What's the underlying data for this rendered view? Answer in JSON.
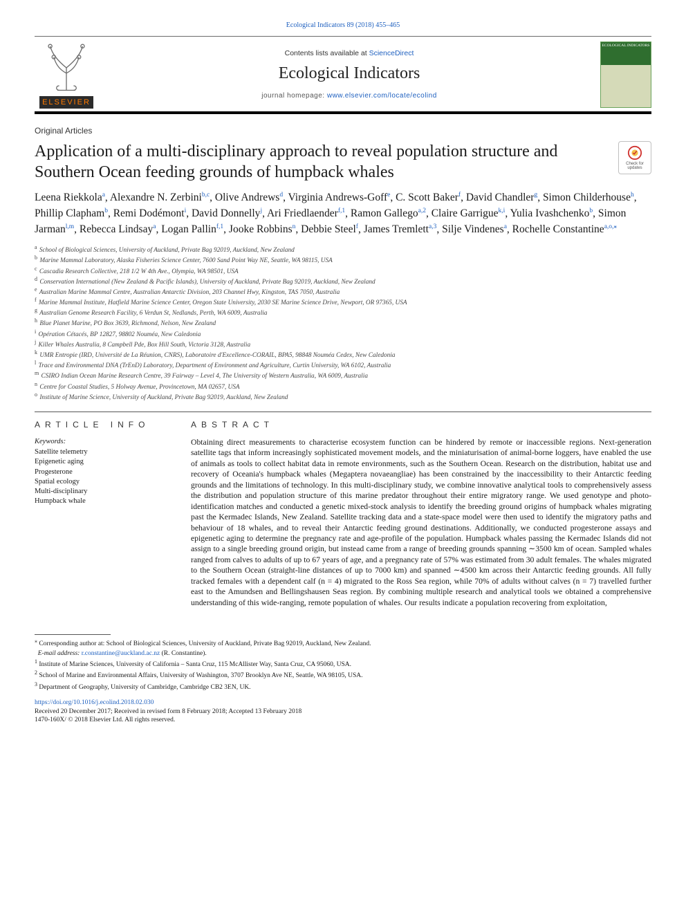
{
  "top": {
    "citation": "Ecological Indicators 89 (2018) 455–465",
    "contents_line_pre": "Contents lists available at ",
    "contents_link": "ScienceDirect",
    "journal": "Ecological Indicators",
    "homepage_pre": "journal homepage: ",
    "homepage_url": "www.elsevier.com/locate/ecolind",
    "elsevier_label": "ELSEVIER",
    "cover_label": "ECOLOGICAL INDICATORS"
  },
  "section_label": "Original Articles",
  "title": "Application of a multi-disciplinary approach to reveal population structure and Southern Ocean feeding grounds of humpback whales",
  "crossmark_text": "Check for updates",
  "authors_html": "Leena Riekkola<sup>a</sup>, Alexandre N. Zerbini<sup>b,c</sup>, Olive Andrews<sup>d</sup>, Virginia Andrews-Goff<sup>e</sup>, C. Scott Baker<sup>f</sup>, David Chandler<sup>g</sup>, Simon Childerhouse<sup>h</sup>, Phillip Clapham<sup>b</sup>, Remi Dodémont<sup>i</sup>, David Donnelly<sup>j</sup>, Ari Friedlaender<sup>f,1</sup>, Ramon Gallego<sup>a,2</sup>, Claire Garrigue<sup>k,i</sup>, Yulia Ivashchenko<sup>b</sup>, Simon Jarman<sup>l,m</sup>, Rebecca Lindsay<sup>a</sup>, Logan Pallin<sup>f,1</sup>, Jooke Robbins<sup>n</sup>, Debbie Steel<sup>f</sup>, James Tremlett<sup>a,3</sup>, Silje Vindenes<sup>a</sup>, Rochelle Constantine<sup>a,o,<span class='corr'>⁎</span></sup>",
  "affiliations": [
    {
      "k": "a",
      "t": "School of Biological Sciences, University of Auckland, Private Bag 92019, Auckland, New Zealand"
    },
    {
      "k": "b",
      "t": "Marine Mammal Laboratory, Alaska Fisheries Science Center, 7600 Sand Point Way NE, Seattle, WA 98115, USA"
    },
    {
      "k": "c",
      "t": "Cascadia Research Collective, 218 1/2 W 4th Ave., Olympia, WA 98501, USA"
    },
    {
      "k": "d",
      "t": "Conservation International (New Zealand & Pacific Islands), University of Auckland, Private Bag 92019, Auckland, New Zealand"
    },
    {
      "k": "e",
      "t": "Australian Marine Mammal Centre, Australian Antarctic Division, 203 Channel Hwy, Kingston, TAS 7050, Australia"
    },
    {
      "k": "f",
      "t": "Marine Mammal Institute, Hatfield Marine Science Center, Oregon State University, 2030 SE Marine Science Drive, Newport, OR 97365, USA"
    },
    {
      "k": "g",
      "t": "Australian Genome Research Facility, 6 Verdun St, Nedlands, Perth, WA 6009, Australia"
    },
    {
      "k": "h",
      "t": "Blue Planet Marine, PO Box 3639, Richmond, Nelson, New Zealand"
    },
    {
      "k": "i",
      "t": "Opération Cétacés, BP 12827, 98802 Nouméa, New Caledonia"
    },
    {
      "k": "j",
      "t": "Killer Whales Australia, 8 Campbell Pde, Box Hill South, Victoria 3128, Australia"
    },
    {
      "k": "k",
      "t": "UMR Entropie (IRD, Université de La Réunion, CNRS), Laboratoire d'Excellence-CORAIL, BPA5, 98848 Nouméa Cedex, New Caledonia"
    },
    {
      "k": "l",
      "t": "Trace and Environmental DNA (TrEnD) Laboratory, Department of Environment and Agriculture, Curtin University, WA 6102, Australia"
    },
    {
      "k": "m",
      "t": "CSIRO Indian Ocean Marine Research Centre, 39 Fairway – Level 4, The University of Western Australia, WA 6009, Australia"
    },
    {
      "k": "n",
      "t": "Centre for Coastal Studies, 5 Holway Avenue, Provincetown, MA 02657, USA"
    },
    {
      "k": "o",
      "t": "Institute of Marine Science, University of Auckland, Private Bag 92019, Auckland, New Zealand"
    }
  ],
  "info_heading": "ARTICLE INFO",
  "abs_heading": "ABSTRACT",
  "keywords_label": "Keywords:",
  "keywords": [
    "Satellite telemetry",
    "Epigenetic aging",
    "Progesterone",
    "Spatial ecology",
    "Multi-disciplinary",
    "Humpback whale"
  ],
  "abstract": "Obtaining direct measurements to characterise ecosystem function can be hindered by remote or inaccessible regions. Next-generation satellite tags that inform increasingly sophisticated movement models, and the miniaturisation of animal-borne loggers, have enabled the use of animals as tools to collect habitat data in remote environments, such as the Southern Ocean. Research on the distribution, habitat use and recovery of Oceania's humpback whales (Megaptera novaeangliae) has been constrained by the inaccessibility to their Antarctic feeding grounds and the limitations of technology. In this multi-disciplinary study, we combine innovative analytical tools to comprehensively assess the distribution and population structure of this marine predator throughout their entire migratory range. We used genotype and photo-identification matches and conducted a genetic mixed-stock analysis to identify the breeding ground origins of humpback whales migrating past the Kermadec Islands, New Zealand. Satellite tracking data and a state-space model were then used to identify the migratory paths and behaviour of 18 whales, and to reveal their Antarctic feeding ground destinations. Additionally, we conducted progesterone assays and epigenetic aging to determine the pregnancy rate and age-profile of the population. Humpback whales passing the Kermadec Islands did not assign to a single breeding ground origin, but instead came from a range of breeding grounds spanning ∼3500 km of ocean. Sampled whales ranged from calves to adults of up to 67 years of age, and a pregnancy rate of 57% was estimated from 30 adult females. The whales migrated to the Southern Ocean (straight-line distances of up to 7000 km) and spanned ∼4500 km across their Antarctic feeding grounds. All fully tracked females with a dependent calf (n = 4) migrated to the Ross Sea region, while 70% of adults without calves (n = 7) travelled further east to the Amundsen and Bellingshausen Seas region. By combining multiple research and analytical tools we obtained a comprehensive understanding of this wide-ranging, remote population of whales. Our results indicate a population recovering from exploitation,",
  "footnotes": {
    "corr": "Corresponding author at: School of Biological Sciences, University of Auckland, Private Bag 92019, Auckland, New Zealand.",
    "email_label": "E-mail address: ",
    "email": "r.constantine@auckland.ac.nz",
    "email_person": " (R. Constantine).",
    "n1": "Institute of Marine Sciences, University of California – Santa Cruz, 115 McAllister Way, Santa Cruz, CA 95060, USA.",
    "n2": "School of Marine and Environmental Affairs, University of Washington, 3707 Brooklyn Ave NE, Seattle, WA 98105, USA.",
    "n3": "Department of Geography, University of Cambridge, Cambridge CB2 3EN, UK."
  },
  "doi": {
    "url": "https://doi.org/10.1016/j.ecolind.2018.02.030",
    "received": "Received 20 December 2017; Received in revised form 8 February 2018; Accepted 13 February 2018",
    "issn_copyright": "1470-160X/ © 2018 Elsevier Ltd. All rights reserved."
  },
  "colors": {
    "link": "#1d5fbf",
    "elsevier_orange": "#ff7a00",
    "rule": "#555555"
  }
}
